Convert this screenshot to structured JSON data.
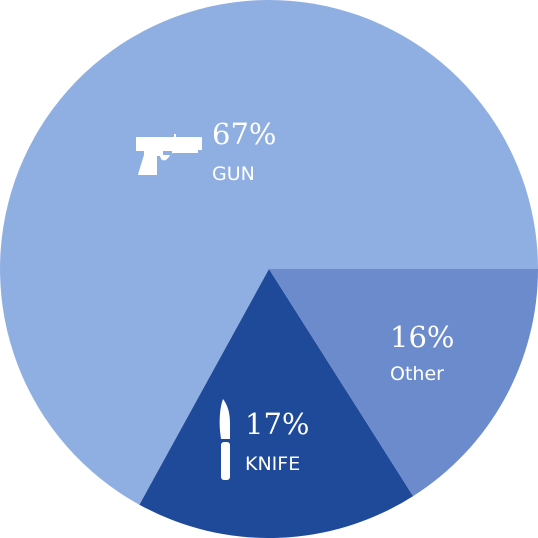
{
  "chart_data": {
    "type": "pie",
    "start_angle_deg": 0,
    "direction": "counterclockwise",
    "slices": [
      {
        "label": "GUN",
        "value": 67,
        "value_label": "67%",
        "color": "#8fafe3",
        "icon": "pistol-icon"
      },
      {
        "label": "KNIFE",
        "value": 17,
        "value_label": "17%",
        "color": "#1f4a99",
        "icon": "knife-icon"
      },
      {
        "label": "Other",
        "value": 16,
        "value_label": "16%",
        "color": "#6b8bcc",
        "icon": ""
      }
    ]
  }
}
